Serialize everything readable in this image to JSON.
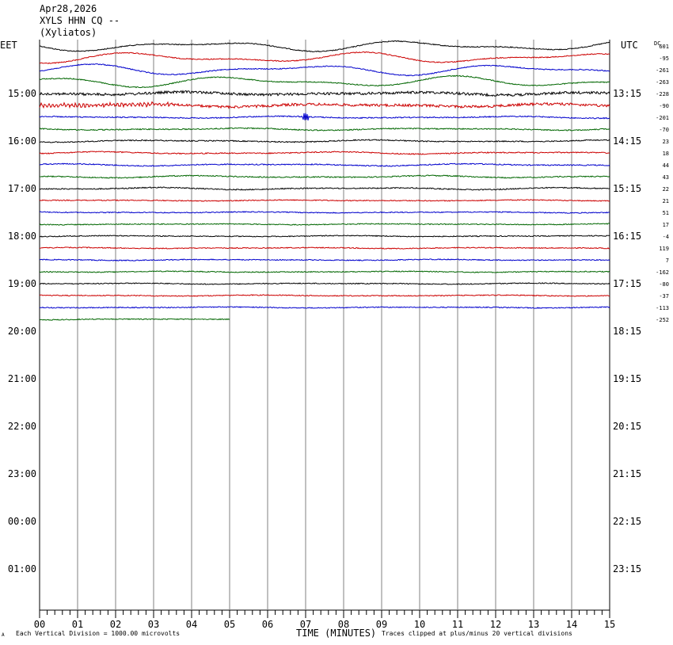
{
  "header": {
    "date": "Apr28,2026",
    "station": "XYLS HHN CQ --",
    "location": "(Xyliatos)"
  },
  "left_zone_label": "EET",
  "right_zone_label": "UTC",
  "dc_label": "DC",
  "footer": {
    "scale_note": "Each Vertical Division = 1000.00 microvolts",
    "xlabel": "TIME (MINUTES)",
    "clip_note": "Traces clipped at plus/minus 20 vertical divisions",
    "corner_mark": "A"
  },
  "colors": {
    "trace_cycle": [
      "#000000",
      "#cc0000",
      "#0000cc",
      "#006600"
    ],
    "gridline": "#808080",
    "axis": "#000000"
  },
  "chart_data": {
    "type": "helicorder",
    "x_ticks": [
      "00",
      "01",
      "02",
      "03",
      "04",
      "05",
      "06",
      "07",
      "08",
      "09",
      "10",
      "11",
      "12",
      "13",
      "14",
      "15"
    ],
    "xlim": [
      0,
      15
    ],
    "left_hour_labels": [
      "15:00",
      "16:00",
      "17:00",
      "18:00",
      "19:00",
      "20:00",
      "21:00",
      "22:00",
      "23:00",
      "00:00",
      "01:00"
    ],
    "right_hour_labels": [
      "13:15",
      "14:15",
      "15:15",
      "16:15",
      "17:15",
      "18:15",
      "19:15",
      "20:15",
      "21:15",
      "22:15",
      "23:15"
    ],
    "traces_per_hour": 4,
    "grid": true,
    "traces": [
      {
        "dc": "601",
        "end_minute": 15,
        "activity": "long-period"
      },
      {
        "dc": "-95",
        "end_minute": 15,
        "activity": "long-period"
      },
      {
        "dc": "-261",
        "end_minute": 15,
        "activity": "long-period"
      },
      {
        "dc": "-263",
        "end_minute": 15,
        "activity": "long-period"
      },
      {
        "dc": "-228",
        "end_minute": 15,
        "activity": "noisy"
      },
      {
        "dc": "-90",
        "end_minute": 15,
        "activity": "noisy"
      },
      {
        "dc": "-201",
        "end_minute": 15,
        "activity": "spike-at-7"
      },
      {
        "dc": "-70",
        "end_minute": 15,
        "activity": "moderate"
      },
      {
        "dc": "23",
        "end_minute": 15,
        "activity": "moderate"
      },
      {
        "dc": "18",
        "end_minute": 15,
        "activity": "moderate"
      },
      {
        "dc": "44",
        "end_minute": 15,
        "activity": "moderate"
      },
      {
        "dc": "43",
        "end_minute": 15,
        "activity": "moderate"
      },
      {
        "dc": "22",
        "end_minute": 15,
        "activity": "moderate"
      },
      {
        "dc": "21",
        "end_minute": 15,
        "activity": "quiet"
      },
      {
        "dc": "51",
        "end_minute": 15,
        "activity": "quiet"
      },
      {
        "dc": "17",
        "end_minute": 15,
        "activity": "quiet"
      },
      {
        "dc": "-4",
        "end_minute": 15,
        "activity": "quiet"
      },
      {
        "dc": "119",
        "end_minute": 15,
        "activity": "quiet"
      },
      {
        "dc": "7",
        "end_minute": 15,
        "activity": "quiet"
      },
      {
        "dc": "-162",
        "end_minute": 15,
        "activity": "quiet"
      },
      {
        "dc": "-80",
        "end_minute": 15,
        "activity": "quiet"
      },
      {
        "dc": "-37",
        "end_minute": 15,
        "activity": "quiet"
      },
      {
        "dc": "-113",
        "end_minute": 15,
        "activity": "quiet"
      },
      {
        "dc": "-252",
        "end_minute": 5,
        "activity": "quiet"
      }
    ]
  }
}
